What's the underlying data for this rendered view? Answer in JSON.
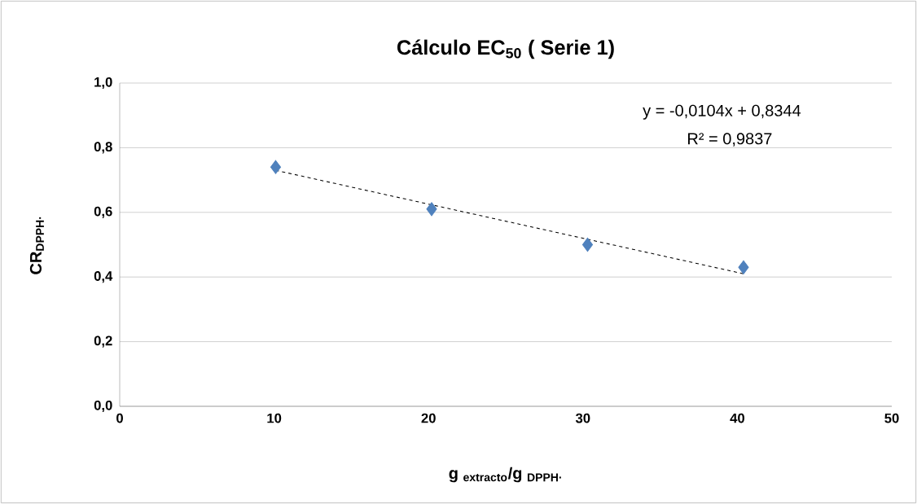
{
  "chart_data": {
    "type": "scatter",
    "title": "Cálculo EC$_{50}$ ( Serie 1)",
    "xlabel": "g $_{extracto}$/g $_{DPPH·}$",
    "ylabel": "CR$_{DPPH·}$",
    "annotations": [
      "y = -0,0104x + 0,8344",
      "R² = 0,9837"
    ],
    "series": [
      {
        "color": "#4f81bd",
        "marker": "diamond",
        "x": [
          10.1,
          20.2,
          30.3,
          40.4
        ],
        "values": [
          0.74,
          0.61,
          0.5,
          0.43
        ]
      },
      {
        "type": "line",
        "color": "#000000",
        "line_style": "dashed",
        "marker": "none",
        "x": [
          10.1,
          40.4
        ],
        "values": [
          0.73,
          0.41
        ]
      }
    ],
    "xlim": [
      0,
      50
    ],
    "xticks": [
      0,
      10,
      20,
      30,
      40,
      50
    ],
    "ylim": [
      0,
      1
    ],
    "yticks": [
      {
        "value": 0,
        "label": "0,0"
      },
      {
        "value": 0.2,
        "label": "0,2"
      },
      {
        "value": 0.4,
        "label": "0,4"
      },
      {
        "value": 0.6,
        "label": "0,6"
      },
      {
        "value": 0.8,
        "label": "0,8"
      },
      {
        "value": 1,
        "label": "1,0"
      }
    ],
    "grid": "y"
  }
}
